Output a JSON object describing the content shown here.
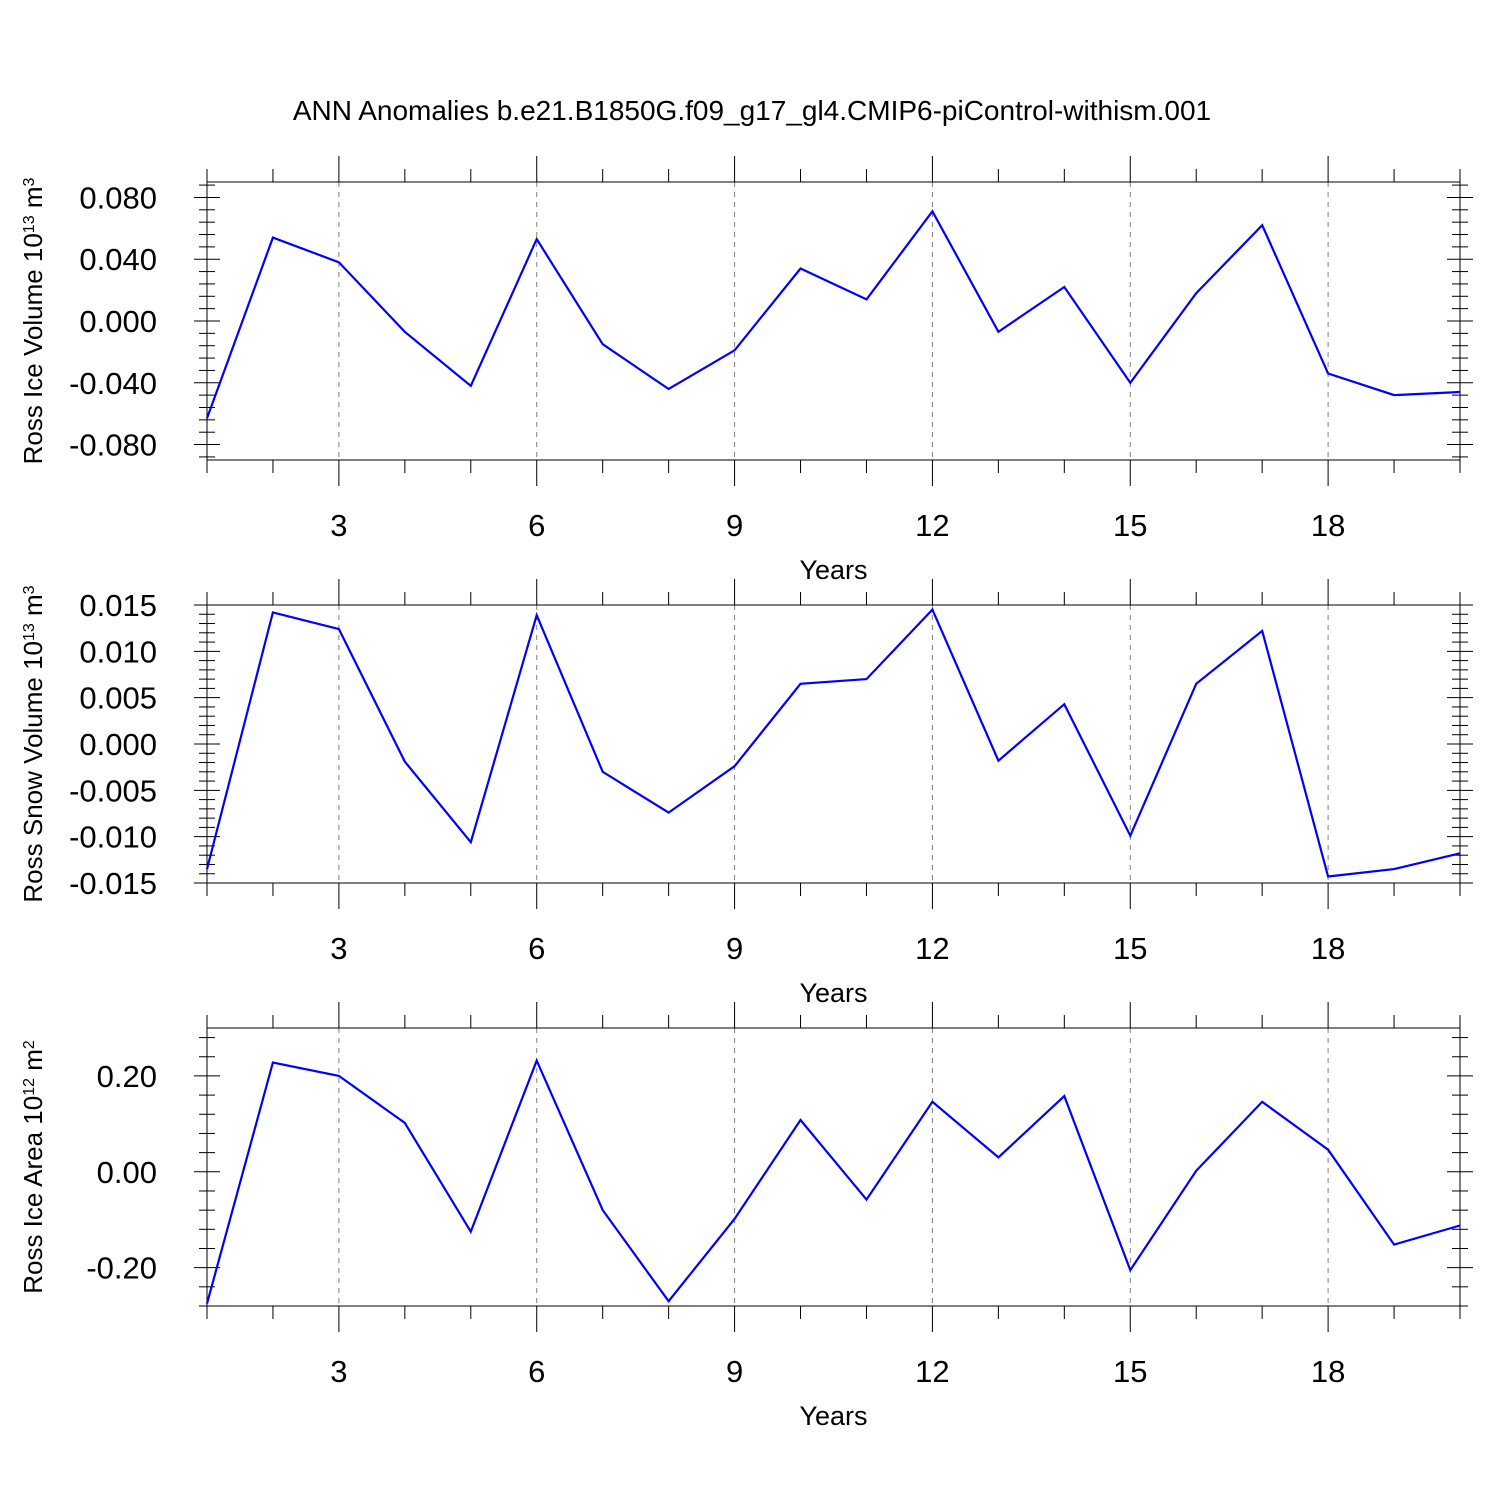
{
  "title": "ANN Anomalies b.e21.B1850G.f09_g17_gl4.CMIP6-piControl-withism.001",
  "colors": {
    "line": "#0000ff",
    "axis": "#000000",
    "grid": "#808080"
  },
  "chart_data": [
    {
      "type": "line",
      "ylabel": {
        "text": "Ross Ice Volume 10",
        "exp1": "13",
        "mid": " m",
        "exp2": "3"
      },
      "xlabel": "Years",
      "xlim": [
        1,
        20
      ],
      "ylim": [
        -0.09,
        0.09
      ],
      "xticks": [
        3,
        6,
        9,
        12,
        15,
        18
      ],
      "yticks": [
        -0.08,
        -0.04,
        0.0,
        0.04,
        0.08
      ],
      "ytick_labels": [
        "-0.080",
        "-0.040",
        "0.000",
        "0.040",
        "0.080"
      ],
      "grid": "x-dashed",
      "x": [
        1,
        2,
        3,
        4,
        5,
        6,
        7,
        8,
        9,
        10,
        11,
        12,
        13,
        14,
        15,
        16,
        17,
        18,
        19,
        20
      ],
      "values": [
        -0.063,
        0.054,
        0.038,
        -0.007,
        -0.042,
        0.053,
        -0.015,
        -0.044,
        -0.019,
        0.034,
        0.014,
        0.071,
        -0.007,
        0.022,
        -0.04,
        0.018,
        0.062,
        -0.034,
        -0.048,
        -0.046
      ]
    },
    {
      "type": "line",
      "ylabel": {
        "text": "Ross Snow Volume 10",
        "exp1": "13",
        "mid": " m",
        "exp2": "3"
      },
      "xlabel": "Years",
      "xlim": [
        1,
        20
      ],
      "ylim": [
        -0.015,
        0.015
      ],
      "xticks": [
        3,
        6,
        9,
        12,
        15,
        18
      ],
      "yticks": [
        -0.015,
        -0.01,
        -0.005,
        0.0,
        0.005,
        0.01,
        0.015
      ],
      "ytick_labels": [
        "-0.015",
        "-0.010",
        "-0.005",
        "0.000",
        "0.005",
        "0.010",
        "0.015"
      ],
      "grid": "x-dashed",
      "x": [
        1,
        2,
        3,
        4,
        5,
        6,
        7,
        8,
        9,
        10,
        11,
        12,
        13,
        14,
        15,
        16,
        17,
        18,
        19,
        20
      ],
      "values": [
        -0.0135,
        0.0142,
        0.0124,
        -0.0019,
        -0.0106,
        0.0139,
        -0.003,
        -0.0074,
        -0.0024,
        0.0065,
        0.007,
        0.0145,
        -0.0018,
        0.0043,
        -0.0099,
        0.0065,
        0.0122,
        -0.0143,
        -0.0135,
        -0.0118
      ]
    },
    {
      "type": "line",
      "ylabel": {
        "text": "Ross Ice Area 10",
        "exp1": "12",
        "mid": " m",
        "exp2": "2"
      },
      "xlabel": "Years",
      "xlim": [
        1,
        20
      ],
      "ylim": [
        -0.28,
        0.3
      ],
      "xticks": [
        3,
        6,
        9,
        12,
        15,
        18
      ],
      "yticks": [
        -0.2,
        0.0,
        0.2
      ],
      "ytick_labels": [
        "-0.20",
        "0.00",
        "0.20"
      ],
      "grid": "x-dashed",
      "x": [
        1,
        2,
        3,
        4,
        5,
        6,
        7,
        8,
        9,
        10,
        11,
        12,
        13,
        14,
        15,
        16,
        17,
        18,
        19,
        20
      ],
      "values": [
        -0.275,
        0.228,
        0.2,
        0.102,
        -0.125,
        0.232,
        -0.08,
        -0.27,
        -0.098,
        0.108,
        -0.058,
        0.146,
        0.03,
        0.158,
        -0.205,
        0.002,
        0.146,
        0.046,
        -0.152,
        -0.112
      ]
    }
  ]
}
